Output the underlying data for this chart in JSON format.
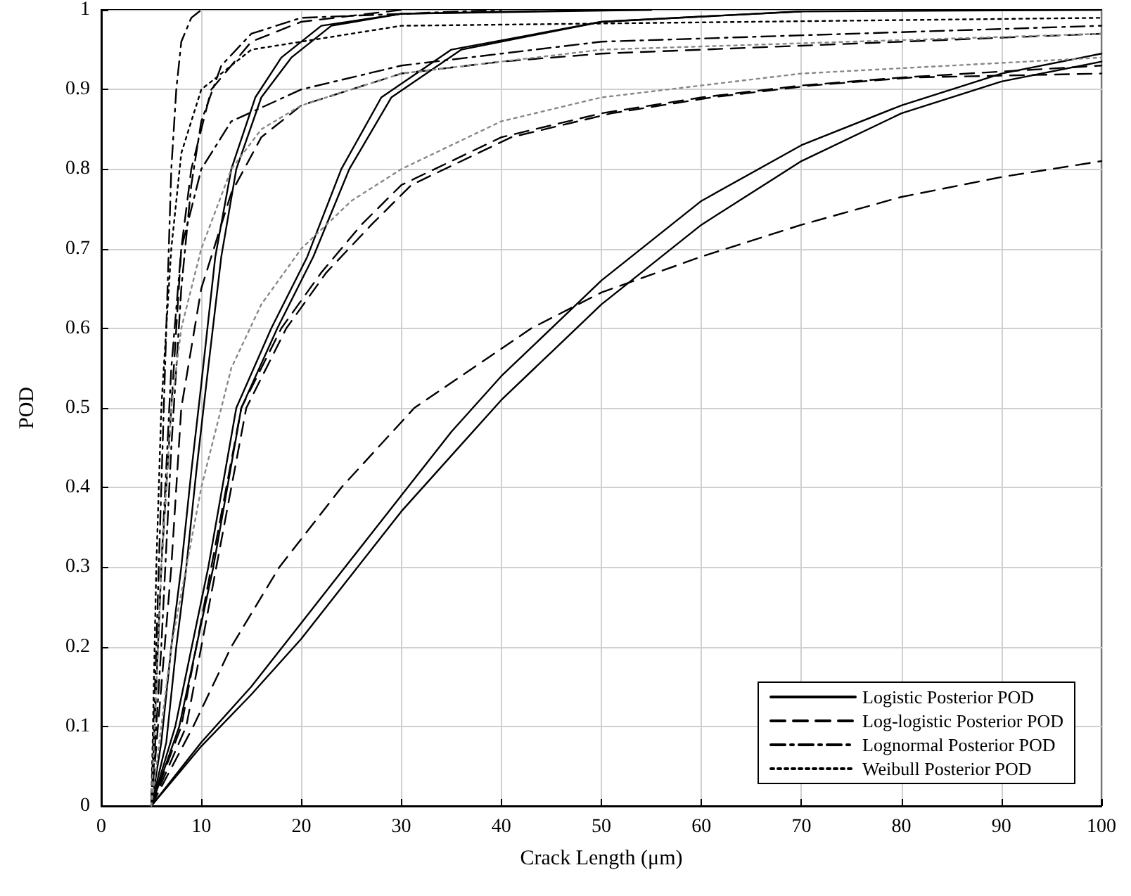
{
  "chart_data": {
    "type": "line",
    "xlabel": "Crack Length (μm)",
    "ylabel": "POD",
    "xlim": [
      0,
      100
    ],
    "xticks": [
      0,
      10,
      20,
      30,
      40,
      50,
      60,
      70,
      80,
      90,
      100
    ],
    "ylim": [
      0,
      1
    ],
    "yticks": [
      0,
      0.1,
      0.2,
      0.3,
      0.4,
      0.5,
      0.6,
      0.7,
      0.8,
      0.9,
      1
    ],
    "grid": true,
    "legend": "bottom right",
    "series": [
      {
        "name": "Logistic Posterior POD",
        "color": "#000000",
        "line_style": "solid",
        "x": [
          5,
          6,
          7,
          8,
          9,
          10,
          11.4,
          13,
          15.4,
          18,
          22,
          30,
          50
        ],
        "values": [
          0,
          0.08,
          0.2,
          0.3,
          0.42,
          0.53,
          0.69,
          0.8,
          0.89,
          0.94,
          0.98,
          0.995,
          1
        ]
      },
      {
        "color": "#000000",
        "line_style": "solid",
        "x": [
          5,
          6.5,
          7.5,
          8.5,
          9.5,
          10.5,
          12,
          13.5,
          16,
          19,
          23,
          30,
          55
        ],
        "values": [
          0,
          0.08,
          0.2,
          0.3,
          0.42,
          0.53,
          0.69,
          0.8,
          0.89,
          0.94,
          0.98,
          0.995,
          1
        ]
      },
      {
        "color": "#000000",
        "line_style": "solid",
        "x": [
          5,
          7.4,
          10.7,
          13.5,
          17,
          20.6,
          24,
          28,
          35,
          50,
          70,
          100
        ],
        "values": [
          0,
          0.1,
          0.3,
          0.5,
          0.6,
          0.69,
          0.8,
          0.89,
          0.95,
          0.985,
          0.998,
          1
        ]
      },
      {
        "color": "#000000",
        "line_style": "solid",
        "x": [
          5,
          7.8,
          11.2,
          14,
          17.6,
          21.2,
          24.8,
          29,
          36,
          50,
          70
        ],
        "values": [
          0,
          0.1,
          0.3,
          0.5,
          0.6,
          0.69,
          0.8,
          0.89,
          0.95,
          0.985,
          0.998
        ]
      },
      {
        "color": "#000000",
        "line_style": "solid",
        "x": [
          5,
          10,
          15,
          20,
          25,
          30,
          35,
          40,
          45,
          50,
          60,
          70,
          80,
          90,
          100
        ],
        "values": [
          0,
          0.08,
          0.15,
          0.23,
          0.31,
          0.39,
          0.47,
          0.54,
          0.6,
          0.66,
          0.76,
          0.83,
          0.88,
          0.92,
          0.945
        ]
      },
      {
        "color": "#000000",
        "line_style": "solid",
        "x": [
          5,
          10,
          15,
          20,
          25,
          30,
          35,
          40,
          45,
          50,
          60,
          70,
          80,
          90,
          100
        ],
        "values": [
          0,
          0.075,
          0.14,
          0.21,
          0.29,
          0.37,
          0.44,
          0.51,
          0.57,
          0.63,
          0.73,
          0.81,
          0.87,
          0.91,
          0.935
        ]
      },
      {
        "name": "Log-logistic Posterior POD",
        "color": "#000000",
        "line_style": "dashed",
        "x": [
          5,
          9.2,
          13,
          17.8,
          24,
          31.3,
          43,
          50,
          60,
          70,
          80,
          90,
          100
        ],
        "values": [
          0,
          0.1,
          0.2,
          0.3,
          0.4,
          0.5,
          0.6,
          0.645,
          0.69,
          0.73,
          0.765,
          0.79,
          0.81
        ]
      },
      {
        "color": "#000000",
        "line_style": "dashed",
        "x": [
          5,
          8,
          11,
          14,
          18,
          22,
          26,
          30,
          40,
          50,
          60,
          70,
          80,
          100
        ],
        "values": [
          0,
          0.1,
          0.3,
          0.5,
          0.6,
          0.67,
          0.73,
          0.78,
          0.84,
          0.87,
          0.89,
          0.905,
          0.915,
          0.93
        ]
      },
      {
        "color": "#000000",
        "line_style": "dashed",
        "x": [
          5,
          8.5,
          11.5,
          14.5,
          18.5,
          22.5,
          27,
          31,
          41,
          51,
          61,
          71,
          81,
          100
        ],
        "values": [
          0,
          0.1,
          0.3,
          0.5,
          0.6,
          0.67,
          0.73,
          0.78,
          0.84,
          0.87,
          0.89,
          0.905,
          0.915,
          0.92
        ]
      },
      {
        "color": "#000000",
        "line_style": "dashed",
        "x": [
          5,
          7,
          8,
          10,
          13,
          16,
          20,
          30,
          40,
          50,
          70,
          100
        ],
        "values": [
          0,
          0.3,
          0.5,
          0.65,
          0.77,
          0.84,
          0.88,
          0.92,
          0.935,
          0.945,
          0.955,
          0.97
        ]
      },
      {
        "color": "#000000",
        "line_style": "dashed",
        "x": [
          5,
          6,
          7,
          8,
          9,
          11,
          15,
          20,
          30
        ],
        "values": [
          0,
          0.3,
          0.5,
          0.7,
          0.8,
          0.9,
          0.96,
          0.985,
          1
        ]
      },
      {
        "name": "Lognormal Posterior POD",
        "color": "#000000",
        "line_style": "dashdot",
        "x": [
          5,
          5.5,
          6,
          6.5,
          7,
          7.5,
          8,
          9,
          10
        ],
        "values": [
          0,
          0.2,
          0.4,
          0.6,
          0.8,
          0.9,
          0.96,
          0.99,
          1
        ]
      },
      {
        "color": "#000000",
        "line_style": "dashdot",
        "x": [
          5,
          6,
          7,
          8,
          9,
          10,
          12,
          15,
          20,
          40
        ],
        "values": [
          0,
          0.2,
          0.45,
          0.65,
          0.78,
          0.86,
          0.93,
          0.97,
          0.99,
          1
        ]
      },
      {
        "color": "#000000",
        "line_style": "dashdot",
        "x": [
          5,
          6,
          7,
          8,
          10,
          13,
          20,
          30,
          50,
          100
        ],
        "values": [
          0,
          0.3,
          0.55,
          0.7,
          0.8,
          0.86,
          0.9,
          0.93,
          0.96,
          0.98
        ]
      },
      {
        "name": "Weibull Posterior POD",
        "color": "#000000",
        "line_style": "dotted",
        "x": [
          5,
          5.5,
          6,
          7,
          8,
          10,
          15,
          30,
          100
        ],
        "values": [
          0,
          0.3,
          0.5,
          0.7,
          0.82,
          0.9,
          0.95,
          0.98,
          0.99
        ]
      },
      {
        "color": "#888888",
        "line_style": "dotted",
        "x": [
          5,
          6,
          7,
          8,
          10,
          13,
          16,
          20,
          30,
          50,
          100
        ],
        "values": [
          0,
          0.3,
          0.5,
          0.6,
          0.7,
          0.8,
          0.85,
          0.88,
          0.92,
          0.95,
          0.97
        ]
      },
      {
        "color": "#888888",
        "line_style": "dotted",
        "x": [
          5,
          7,
          10,
          13,
          16,
          20,
          25,
          30,
          40,
          50,
          70,
          100
        ],
        "values": [
          0,
          0.2,
          0.4,
          0.55,
          0.63,
          0.7,
          0.76,
          0.8,
          0.86,
          0.89,
          0.92,
          0.94
        ]
      }
    ]
  }
}
